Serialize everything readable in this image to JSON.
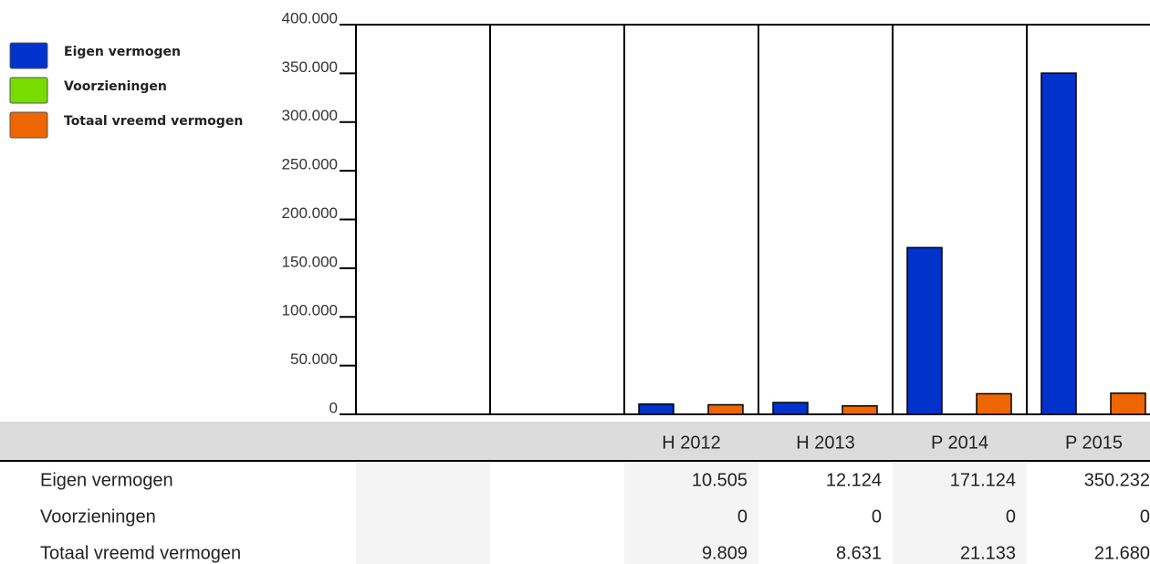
{
  "chart_data": {
    "type": "bar",
    "categories": [
      null,
      null,
      "H 2012",
      "H 2013",
      "P 2014",
      "P 2015"
    ],
    "series": [
      {
        "name": "Eigen vermogen",
        "color": "#0033cc",
        "values": [
          null,
          null,
          10505,
          12124,
          171124,
          350232
        ],
        "value_labels": [
          null,
          null,
          "10.505",
          "12.124",
          "171.124",
          "350.232"
        ]
      },
      {
        "name": "Voorzieningen",
        "color": "#77dd00",
        "values": [
          null,
          null,
          0,
          0,
          0,
          0
        ]
      },
      {
        "name": "Totaal vreemd vermogen",
        "color": "#ee6600",
        "values": [
          null,
          null,
          9809,
          8631,
          21133,
          21680
        ],
        "value_labels": [
          null,
          null,
          "9.809",
          "8.631",
          "21.133",
          "21.680"
        ]
      }
    ],
    "ylim": [
      0,
      400000
    ],
    "yticks": [
      0,
      {
        "value": 50000,
        "label": "50.000"
      },
      {
        "value": 100000,
        "label": "100.000"
      },
      {
        "value": 150000,
        "label": "150.000"
      },
      {
        "value": 200000,
        "label": "200.000"
      },
      {
        "value": 250000,
        "label": "250.000"
      },
      {
        "value": 300000,
        "label": "300.000"
      },
      {
        "value": 350000,
        "label": "350.000"
      },
      {
        "value": 400000,
        "label": "400.000"
      }
    ],
    "legend": "top-left"
  }
}
